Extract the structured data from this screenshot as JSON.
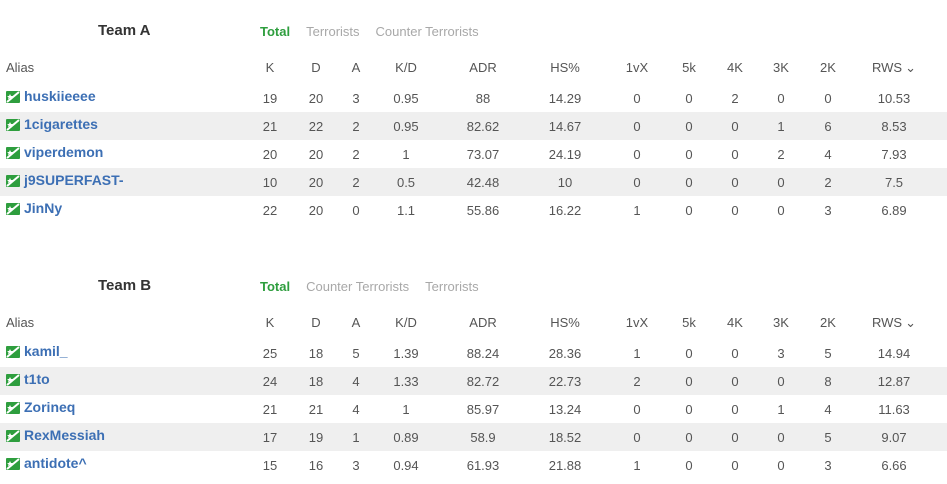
{
  "columns": {
    "alias": "Alias",
    "k": "K",
    "d": "D",
    "a": "A",
    "kd": "K/D",
    "adr": "ADR",
    "hs": "HS%",
    "vx": "1vX",
    "k5": "5k",
    "k4": "4K",
    "k3": "3K",
    "k2": "2K",
    "rws": "RWS"
  },
  "icons": {
    "flag": "player-flag-icon",
    "sort": "chevron-down-icon"
  },
  "colors": {
    "accent": "#2e9e3e",
    "link": "#3c6fb4",
    "row_alt": "#efefef"
  },
  "teams": [
    {
      "name": "Team A",
      "tabs": [
        "Total",
        "Terrorists",
        "Counter Terrorists"
      ],
      "players": [
        {
          "alias": "huskiieeee",
          "k": "19",
          "d": "20",
          "a": "3",
          "kd": "0.95",
          "adr": "88",
          "hs": "14.29",
          "vx": "0",
          "k5": "0",
          "k4": "2",
          "k3": "0",
          "k2": "0",
          "rws": "10.53"
        },
        {
          "alias": "1cigarettes",
          "k": "21",
          "d": "22",
          "a": "2",
          "kd": "0.95",
          "adr": "82.62",
          "hs": "14.67",
          "vx": "0",
          "k5": "0",
          "k4": "0",
          "k3": "1",
          "k2": "6",
          "rws": "8.53"
        },
        {
          "alias": "viperdemon",
          "k": "20",
          "d": "20",
          "a": "2",
          "kd": "1",
          "adr": "73.07",
          "hs": "24.19",
          "vx": "0",
          "k5": "0",
          "k4": "0",
          "k3": "2",
          "k2": "4",
          "rws": "7.93"
        },
        {
          "alias": "j9SUPERFAST-",
          "k": "10",
          "d": "20",
          "a": "2",
          "kd": "0.5",
          "adr": "42.48",
          "hs": "10",
          "vx": "0",
          "k5": "0",
          "k4": "0",
          "k3": "0",
          "k2": "2",
          "rws": "7.5"
        },
        {
          "alias": "JinNy",
          "k": "22",
          "d": "20",
          "a": "0",
          "kd": "1.1",
          "adr": "55.86",
          "hs": "16.22",
          "vx": "1",
          "k5": "0",
          "k4": "0",
          "k3": "0",
          "k2": "3",
          "rws": "6.89"
        }
      ]
    },
    {
      "name": "Team B",
      "tabs": [
        "Total",
        "Counter Terrorists",
        "Terrorists"
      ],
      "players": [
        {
          "alias": "kamil_",
          "k": "25",
          "d": "18",
          "a": "5",
          "kd": "1.39",
          "adr": "88.24",
          "hs": "28.36",
          "vx": "1",
          "k5": "0",
          "k4": "0",
          "k3": "3",
          "k2": "5",
          "rws": "14.94"
        },
        {
          "alias": "t1to",
          "k": "24",
          "d": "18",
          "a": "4",
          "kd": "1.33",
          "adr": "82.72",
          "hs": "22.73",
          "vx": "2",
          "k5": "0",
          "k4": "0",
          "k3": "0",
          "k2": "8",
          "rws": "12.87"
        },
        {
          "alias": "Zorineq",
          "k": "21",
          "d": "21",
          "a": "4",
          "kd": "1",
          "adr": "85.97",
          "hs": "13.24",
          "vx": "0",
          "k5": "0",
          "k4": "0",
          "k3": "1",
          "k2": "4",
          "rws": "11.63"
        },
        {
          "alias": "RexMessiah",
          "k": "17",
          "d": "19",
          "a": "1",
          "kd": "0.89",
          "adr": "58.9",
          "hs": "18.52",
          "vx": "0",
          "k5": "0",
          "k4": "0",
          "k3": "0",
          "k2": "5",
          "rws": "9.07"
        },
        {
          "alias": "antidote^",
          "k": "15",
          "d": "16",
          "a": "3",
          "kd": "0.94",
          "adr": "61.93",
          "hs": "21.88",
          "vx": "1",
          "k5": "0",
          "k4": "0",
          "k3": "0",
          "k2": "3",
          "rws": "6.66"
        }
      ]
    }
  ]
}
